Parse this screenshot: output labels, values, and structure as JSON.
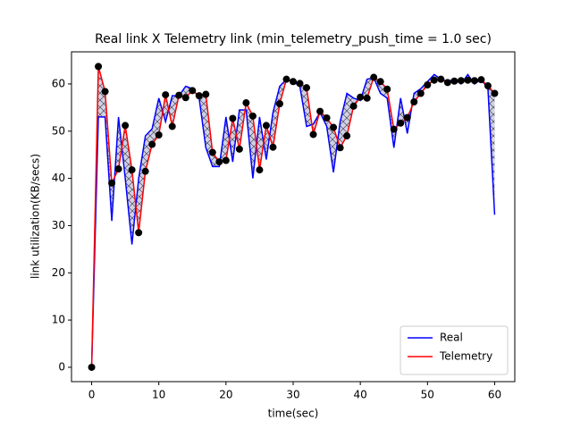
{
  "chart_data": {
    "type": "line",
    "title": "Real link X Telemetry link (min_telemetry_push_time = 1.0 sec)",
    "x_label": "time(sec)",
    "y_label": "link utilization(KB/secs)",
    "x": [
      0,
      1,
      2,
      3,
      4,
      5,
      6,
      7,
      8,
      9,
      10,
      11,
      12,
      13,
      14,
      15,
      16,
      17,
      18,
      19,
      20,
      21,
      22,
      23,
      24,
      25,
      26,
      27,
      28,
      29,
      30,
      31,
      32,
      33,
      34,
      35,
      36,
      37,
      38,
      39,
      40,
      41,
      42,
      43,
      44,
      45,
      46,
      47,
      48,
      49,
      50,
      51,
      52,
      53,
      54,
      55,
      56,
      57,
      58,
      59,
      60
    ],
    "series": [
      {
        "name": "Real",
        "color": "#0000ff",
        "marker": false,
        "values": [
          0,
          53,
          53,
          31,
          53,
          40,
          26,
          40,
          49,
          50.5,
          57,
          52,
          57.5,
          57.5,
          59.5,
          59,
          57,
          46.5,
          42.5,
          42.5,
          53,
          43.5,
          54.5,
          54.5,
          40,
          53,
          44,
          54,
          59.5,
          61,
          60.5,
          59.5,
          51,
          51.5,
          54,
          51,
          41.3,
          52,
          58,
          57,
          56.5,
          61,
          61.3,
          58,
          57,
          46.5,
          57,
          49.5,
          58,
          59,
          60.5,
          62,
          61,
          60.5,
          61,
          60,
          62,
          60,
          61,
          59,
          32.3
        ]
      },
      {
        "name": "Telemetry",
        "color": "#ff0000",
        "marker": true,
        "marker_color": "#000000",
        "values": [
          0,
          63.7,
          58.4,
          39,
          42,
          51.2,
          41.8,
          28.5,
          41.5,
          47.2,
          49.2,
          57.7,
          51,
          57.6,
          57.1,
          58.6,
          57.5,
          57.8,
          45.5,
          43.5,
          43.8,
          52.7,
          46.2,
          56,
          53.2,
          41.8,
          51.2,
          46.6,
          55.8,
          61,
          60.5,
          60.1,
          59.2,
          49.3,
          54.2,
          52.8,
          50.8,
          46.5,
          49,
          55.3,
          57.2,
          57,
          61.4,
          60.5,
          58.9,
          50.4,
          51.7,
          52.9,
          56.2,
          58,
          59.8,
          60.8,
          61,
          60.3,
          60.6,
          60.7,
          60.8,
          60.7,
          60.9,
          59.6,
          58
        ]
      }
    ],
    "fill_between": true,
    "xlim": [
      -3,
      63
    ],
    "ylim": [
      -3.04,
      66.8
    ],
    "xticks": [
      0,
      10,
      20,
      30,
      40,
      50,
      60
    ],
    "yticks": [
      0,
      10,
      20,
      30,
      40,
      50,
      60
    ],
    "legend": "lower right"
  }
}
